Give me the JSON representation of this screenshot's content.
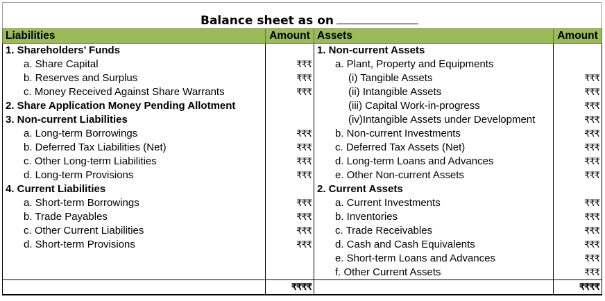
{
  "title": "Balance sheet as on",
  "headers": {
    "liabilities": "Liabilities",
    "amount_left": "Amount",
    "assets": "Assets",
    "amount_right": "Amount"
  },
  "currency_mark": "₹₹₹",
  "total_mark": "₹₹₹₹",
  "rows": [
    {
      "l": "1. Shareholders’ Funds",
      "l_style": "bold",
      "la": "",
      "r": "1. Non-current Assets",
      "r_style": "bold",
      "ra": ""
    },
    {
      "l": "a. Share Capital",
      "l_style": "ind1",
      "la": "₹₹₹",
      "r": "a. Plant, Property and Equipments",
      "r_style": "ind1",
      "ra": ""
    },
    {
      "l": "b. Reserves and Surplus",
      "l_style": "ind1",
      "la": "₹₹₹",
      "r": "(i) Tangible Assets",
      "r_style": "ind2",
      "ra": "₹₹₹"
    },
    {
      "l": "c. Money Received Against Share Warrants",
      "l_style": "ind1",
      "la": "₹₹₹",
      "r": "(ii) Intangible Assets",
      "r_style": "ind2",
      "ra": "₹₹₹"
    },
    {
      "l": "2. Share Application Money Pending Allotment",
      "l_style": "bold",
      "la": "",
      "r": "(iii) Capital Work-in-progress",
      "r_style": "ind2",
      "ra": "₹₹₹"
    },
    {
      "l": "3. Non-current Liabilities",
      "l_style": "bold",
      "la": "",
      "r": "(iv)Intangible Assets under Development",
      "r_style": "ind2",
      "ra": "₹₹₹"
    },
    {
      "l": "a. Long-term Borrowings",
      "l_style": "ind1",
      "la": "₹₹₹",
      "r": "b. Non-current Investments",
      "r_style": "ind1",
      "ra": "₹₹₹"
    },
    {
      "l": "b. Deferred Tax Liabilities (Net)",
      "l_style": "ind1",
      "la": "₹₹₹",
      "r": "c. Deferred Tax Assets (Net)",
      "r_style": "ind1",
      "ra": "₹₹₹"
    },
    {
      "l": "c. Other Long-term Liabilities",
      "l_style": "ind1",
      "la": "₹₹₹",
      "r": "d. Long-term Loans and Advances",
      "r_style": "ind1",
      "ra": "₹₹₹"
    },
    {
      "l": "d. Long-term Provisions",
      "l_style": "ind1",
      "la": "₹₹₹",
      "r": "e. Other Non-current Assets",
      "r_style": "ind1",
      "ra": "₹₹₹"
    },
    {
      "l": "4. Current Liabilities",
      "l_style": "bold",
      "la": "",
      "r": "2. Current Assets",
      "r_style": "bold",
      "ra": ""
    },
    {
      "l": "a. Short-term Borrowings",
      "l_style": "ind1",
      "la": "₹₹₹",
      "r": "a. Current Investments",
      "r_style": "ind1",
      "ra": "₹₹₹"
    },
    {
      "l": "b. Trade Payables",
      "l_style": "ind1",
      "la": "₹₹₹",
      "r": "b. Inventories",
      "r_style": "ind1",
      "ra": "₹₹₹"
    },
    {
      "l": "c. Other Current Liabilities",
      "l_style": "ind1",
      "la": "₹₹₹",
      "r": "c. Trade Receivables",
      "r_style": "ind1",
      "ra": "₹₹₹"
    },
    {
      "l": "d. Short-term Provisions",
      "l_style": "ind1",
      "la": "₹₹₹",
      "r": "d. Cash and Cash Equivalents",
      "r_style": "ind1",
      "ra": "₹₹₹"
    },
    {
      "l": "",
      "l_style": "ind1",
      "la": "",
      "r": "e. Short-term Loans and Advances",
      "r_style": "ind1",
      "ra": "₹₹₹"
    },
    {
      "l": "",
      "l_style": "ind1",
      "la": "",
      "r": "f.  Other Current Assets",
      "r_style": "ind1",
      "ra": "₹₹₹"
    }
  ],
  "totals": {
    "left": "₹₹₹₹",
    "right": "₹₹₹₹"
  }
}
